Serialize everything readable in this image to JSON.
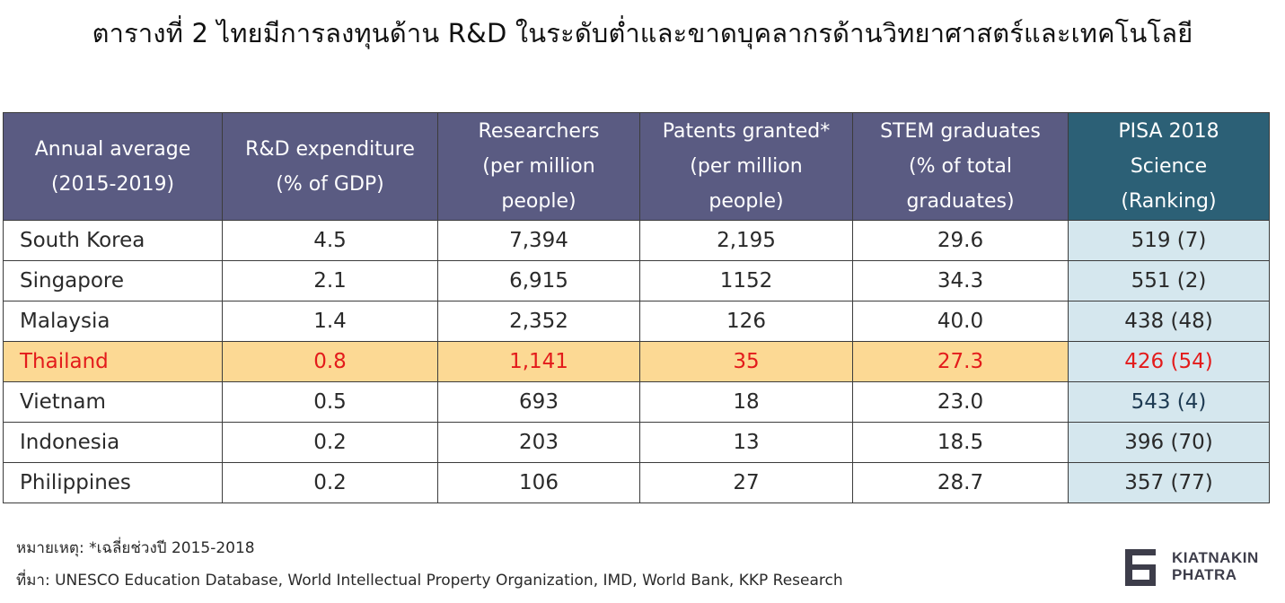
{
  "title": "ตารางที่ 2 ไทยมีการลงทุนด้าน R&D ในระดับต่ำและขาดบุคลากรด้านวิทยาศาสตร์และเทคโนโลยี",
  "table": {
    "headers": [
      {
        "lines": [
          "Annual average",
          "(2015-2019)"
        ]
      },
      {
        "lines": [
          "R&D expenditure",
          "(% of GDP)"
        ]
      },
      {
        "lines": [
          "Researchers",
          "(per million",
          "people)"
        ]
      },
      {
        "lines": [
          "Patents granted*",
          "(per million",
          "people)"
        ]
      },
      {
        "lines": [
          "STEM graduates",
          "(% of total",
          "graduates)"
        ]
      },
      {
        "lines": [
          "PISA 2018",
          "Science",
          "(Ranking)"
        ]
      }
    ],
    "rows": [
      {
        "country": "South Korea",
        "rd": "4.5",
        "researchers": "7,394",
        "patents": "2,195",
        "stem": "29.6",
        "pisa": "519 (7)"
      },
      {
        "country": "Singapore",
        "rd": "2.1",
        "researchers": "6,915",
        "patents": "1152",
        "stem": "34.3",
        "pisa": "551 (2)"
      },
      {
        "country": "Malaysia",
        "rd": "1.4",
        "researchers": "2,352",
        "patents": "126",
        "stem": "40.0",
        "pisa": "438 (48)"
      },
      {
        "country": "Thailand",
        "rd": "0.8",
        "researchers": "1,141",
        "patents": "35",
        "stem": "27.3",
        "pisa": "426 (54)"
      },
      {
        "country": "Vietnam",
        "rd": "0.5",
        "researchers": "693",
        "patents": "18",
        "stem": "23.0",
        "pisa": "543 (4)"
      },
      {
        "country": "Indonesia",
        "rd": "0.2",
        "researchers": "203",
        "patents": "13",
        "stem": "18.5",
        "pisa": "396 (70)"
      },
      {
        "country": "Philippines",
        "rd": "0.2",
        "researchers": "106",
        "patents": "27",
        "stem": "28.7",
        "pisa": "357 (77)"
      }
    ]
  },
  "note": "หมายเหตุ: *เฉลี่ยช่วงปี 2015-2018",
  "source": "ที่มา: UNESCO Education Database, World Intellectual Property Organization, IMD, World Bank, KKP Research",
  "logo": {
    "line1": "KIATNAKIN",
    "line2": "PHATRA"
  },
  "colors": {
    "header": "#5a5b82",
    "pisa_header": "#2c6076",
    "pisa_cells": "#d5e7ee",
    "highlight_row": "#fcd994",
    "highlight_text": "#e31b1b"
  }
}
